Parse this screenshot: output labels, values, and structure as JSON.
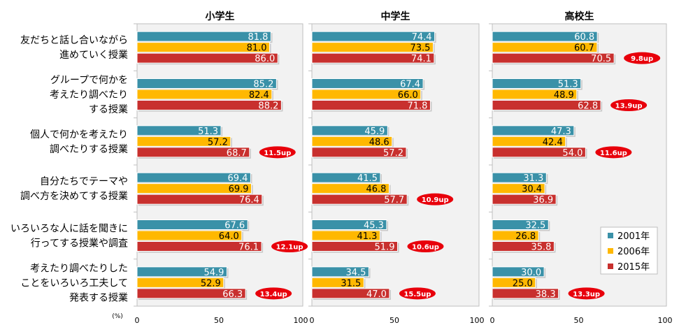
{
  "chart_data": {
    "type": "bar",
    "orientation": "horizontal",
    "unit_label": "(%)",
    "categories": [
      [
        "友だちと話し合いながら",
        "進めていく授業"
      ],
      [
        "グループで何かを",
        "考えたり調べたり",
        "する授業"
      ],
      [
        "個人で何かを考えたり",
        "調べたりする授業"
      ],
      [
        "自分たちでテーマや",
        "調べ方を決めてする授業"
      ],
      [
        "いろいろな人に話を聞きに",
        "行ってする授業や調査"
      ],
      [
        "考えたり調べたりした",
        "ことをいろいろ工夫して",
        "発表する授業"
      ]
    ],
    "xlim": [
      0,
      100
    ],
    "xticks": [
      "0",
      "50",
      "100"
    ],
    "grid": false,
    "legend": {
      "position": "bottom-right",
      "entries": [
        "2001年",
        "2006年",
        "2015年"
      ]
    },
    "colors": {
      "2001年": "#3A91A8",
      "2006年": "#FFB800",
      "2015年": "#C8302E",
      "badge": "#E8000B"
    },
    "panels": [
      {
        "title": "小学生",
        "series": [
          {
            "name": "2001年",
            "values": [
              81.8,
              85.2,
              51.3,
              69.4,
              67.6,
              54.9
            ]
          },
          {
            "name": "2006年",
            "values": [
              81.0,
              82.4,
              57.2,
              69.9,
              64.0,
              52.9
            ]
          },
          {
            "name": "2015年",
            "values": [
              86.0,
              88.2,
              68.7,
              76.4,
              76.1,
              66.3
            ]
          }
        ],
        "labels": [
          [
            "81.8",
            "81.0",
            "86.0"
          ],
          [
            "85.2",
            "82.4",
            "88.2"
          ],
          [
            "51.3",
            "57.2",
            "68.7"
          ],
          [
            "69.4",
            "69.9",
            "76.4"
          ],
          [
            "67.6",
            "64.0",
            "76.1"
          ],
          [
            "54.9",
            "52.9",
            "66.3"
          ]
        ],
        "badges": [
          "",
          "",
          "11.5up",
          "",
          "12.1up",
          "13.4up"
        ]
      },
      {
        "title": "中学生",
        "series": [
          {
            "name": "2001年",
            "values": [
              74.4,
              67.4,
              45.9,
              41.5,
              45.3,
              34.5
            ]
          },
          {
            "name": "2006年",
            "values": [
              73.5,
              66.0,
              48.6,
              46.8,
              41.3,
              31.5
            ]
          },
          {
            "name": "2015年",
            "values": [
              74.1,
              71.8,
              57.2,
              57.7,
              51.9,
              47.0
            ]
          }
        ],
        "labels": [
          [
            "74.4",
            "73.5",
            "74.1"
          ],
          [
            "67.4",
            "66.0",
            "71.8"
          ],
          [
            "45.9",
            "48.6",
            "57.2"
          ],
          [
            "41.5",
            "46.8",
            "57.7"
          ],
          [
            "45.3",
            "41.3",
            "51.9"
          ],
          [
            "34.5",
            "31.5",
            "47.0"
          ]
        ],
        "badges": [
          "",
          "",
          "",
          "10.9up",
          "10.6up",
          "15.5up"
        ]
      },
      {
        "title": "高校生",
        "series": [
          {
            "name": "2001年",
            "values": [
              60.8,
              51.3,
              47.3,
              31.3,
              32.5,
              30.0
            ]
          },
          {
            "name": "2006年",
            "values": [
              60.7,
              48.9,
              42.4,
              30.4,
              26.8,
              25.0
            ]
          },
          {
            "name": "2015年",
            "values": [
              70.5,
              62.8,
              54.0,
              36.9,
              35.8,
              38.3
            ]
          }
        ],
        "labels": [
          [
            "60.8",
            "60.7",
            "70.5"
          ],
          [
            "51.3",
            "48.9",
            "62.8"
          ],
          [
            "47.3",
            "42.4",
            "54.0"
          ],
          [
            "31.3",
            "30.4",
            "36.9"
          ],
          [
            "32.5",
            "26.8",
            "35.8"
          ],
          [
            "30.0",
            "25.0",
            "38.3"
          ]
        ],
        "badges": [
          "9.8up",
          "13.9up",
          "11.6up",
          "",
          "",
          "13.3up"
        ]
      }
    ]
  }
}
